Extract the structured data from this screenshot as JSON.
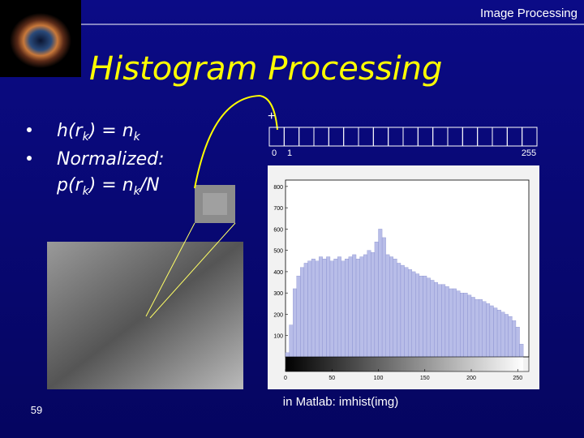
{
  "header": {
    "title": "Image Processing"
  },
  "slide": {
    "title": "Histogram Processing",
    "page_number": "59"
  },
  "bullets": [
    {
      "parts": [
        "h(r",
        "k",
        ") = n",
        "k"
      ]
    },
    {
      "lead": "Normalized:",
      "parts": [
        "p(r",
        "k",
        ") = n",
        "k",
        "/N"
      ]
    }
  ],
  "pixel_grid": {
    "marker": "+",
    "labels": [
      "0",
      "1",
      "255"
    ]
  },
  "caption": "in Matlab: imhist(img)",
  "chart_data": {
    "type": "histogram",
    "bins": [
      0,
      4,
      8,
      12,
      16,
      20,
      24,
      28,
      32,
      36,
      40,
      44,
      48,
      52,
      56,
      60,
      64,
      68,
      72,
      76,
      80,
      84,
      88,
      92,
      96,
      100,
      104,
      108,
      112,
      116,
      120,
      124,
      128,
      132,
      136,
      140,
      144,
      148,
      152,
      156,
      160,
      164,
      168,
      172,
      176,
      180,
      184,
      188,
      192,
      196,
      200,
      204,
      208,
      212,
      216,
      220,
      224,
      228,
      232,
      236,
      240,
      244,
      248,
      252,
      256
    ],
    "values": [
      20,
      150,
      320,
      380,
      420,
      440,
      450,
      460,
      450,
      470,
      460,
      470,
      450,
      460,
      470,
      450,
      460,
      470,
      480,
      460,
      470,
      480,
      500,
      490,
      540,
      600,
      560,
      480,
      470,
      460,
      440,
      430,
      420,
      410,
      400,
      390,
      380,
      380,
      370,
      360,
      350,
      340,
      340,
      330,
      320,
      320,
      310,
      300,
      300,
      290,
      280,
      270,
      270,
      260,
      250,
      240,
      230,
      220,
      210,
      200,
      190,
      170,
      140,
      60
    ],
    "color": "#b8bde8",
    "xlim": [
      0,
      262
    ],
    "ylim": [
      0,
      830
    ],
    "xticks": [
      0,
      50,
      100,
      150,
      200,
      250
    ],
    "yticks": [
      100,
      200,
      300,
      400,
      500,
      600,
      700,
      800
    ]
  }
}
